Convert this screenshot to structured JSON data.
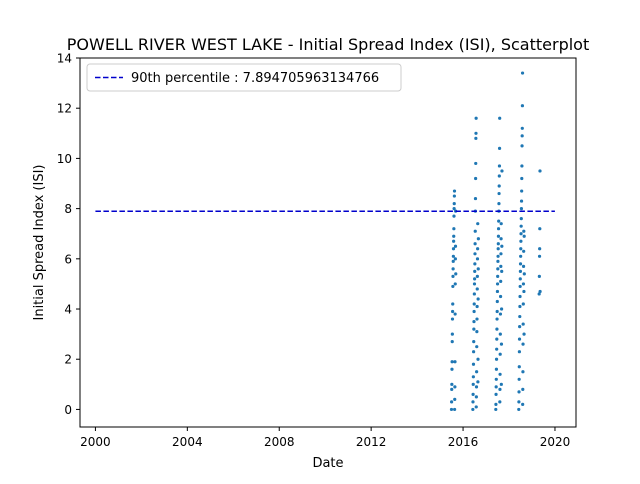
{
  "chart_data": {
    "type": "scatter",
    "title": "POWELL RIVER WEST LAKE - Initial Spread Index (ISI), Scatterplot",
    "xlabel": "Date",
    "ylabel": "Initial Spread Index (ISI)",
    "x_is_date": true,
    "xlim": [
      "1999-05-01",
      "2020-12-01"
    ],
    "ylim": [
      -0.7,
      14
    ],
    "x_ticks": [
      "2000",
      "2004",
      "2008",
      "2012",
      "2016",
      "2020"
    ],
    "y_ticks": [
      "0",
      "2",
      "4",
      "6",
      "8",
      "10",
      "12",
      "14"
    ],
    "grid": false,
    "legend_position": "upper left",
    "colors": {
      "points": "#1f77b4",
      "percentile_line": "#0000cc"
    },
    "reference_line": {
      "label": "90th percentile : 7.894705963134766",
      "y": 7.894705963134766,
      "x_start": "2000-01-01",
      "x_end": "2019-12-31",
      "style": "dashed"
    },
    "series": [
      {
        "points": [
          [
            "2015-07-01",
            0.0
          ],
          [
            "2015-07-03",
            0.3
          ],
          [
            "2015-07-05",
            0.8
          ],
          [
            "2015-07-07",
            1.0
          ],
          [
            "2015-07-09",
            1.6
          ],
          [
            "2015-07-11",
            1.9
          ],
          [
            "2015-07-13",
            2.7
          ],
          [
            "2015-07-15",
            3.0
          ],
          [
            "2015-07-17",
            3.6
          ],
          [
            "2015-07-19",
            3.9
          ],
          [
            "2015-07-21",
            4.2
          ],
          [
            "2015-07-23",
            4.9
          ],
          [
            "2015-07-25",
            5.3
          ],
          [
            "2015-07-27",
            5.6
          ],
          [
            "2015-07-29",
            5.9
          ],
          [
            "2015-07-31",
            6.1
          ],
          [
            "2015-08-02",
            6.4
          ],
          [
            "2015-08-04",
            6.7
          ],
          [
            "2015-08-06",
            6.9
          ],
          [
            "2015-08-08",
            7.2
          ],
          [
            "2015-08-10",
            7.7
          ],
          [
            "2015-08-12",
            8.0
          ],
          [
            "2015-08-14",
            8.2
          ],
          [
            "2015-08-16",
            8.5
          ],
          [
            "2015-08-18",
            8.7
          ],
          [
            "2015-08-20",
            0.0
          ],
          [
            "2015-08-22",
            0.4
          ],
          [
            "2015-08-24",
            0.9
          ],
          [
            "2015-08-26",
            1.9
          ],
          [
            "2015-08-28",
            3.8
          ],
          [
            "2015-08-30",
            5.0
          ],
          [
            "2015-09-01",
            6.0
          ],
          [
            "2015-09-03",
            6.5
          ],
          [
            "2015-09-05",
            7.9
          ],
          [
            "2015-09-07",
            5.4
          ],
          [
            "2016-06-05",
            0.0
          ],
          [
            "2016-06-07",
            0.3
          ],
          [
            "2016-06-09",
            0.6
          ],
          [
            "2016-06-11",
            1.0
          ],
          [
            "2016-06-13",
            1.3
          ],
          [
            "2016-06-15",
            1.8
          ],
          [
            "2016-06-17",
            2.3
          ],
          [
            "2016-06-19",
            2.7
          ],
          [
            "2016-06-21",
            3.2
          ],
          [
            "2016-06-23",
            3.5
          ],
          [
            "2016-06-25",
            3.9
          ],
          [
            "2016-06-27",
            4.2
          ],
          [
            "2016-06-29",
            4.6
          ],
          [
            "2016-07-01",
            5.0
          ],
          [
            "2016-07-03",
            5.2
          ],
          [
            "2016-07-05",
            5.5
          ],
          [
            "2016-07-07",
            5.8
          ],
          [
            "2016-07-09",
            6.2
          ],
          [
            "2016-07-11",
            6.6
          ],
          [
            "2016-07-13",
            7.1
          ],
          [
            "2016-07-15",
            7.9
          ],
          [
            "2016-07-17",
            8.4
          ],
          [
            "2016-07-19",
            9.2
          ],
          [
            "2016-07-21",
            9.8
          ],
          [
            "2016-07-23",
            10.8
          ],
          [
            "2016-07-25",
            11.0
          ],
          [
            "2016-07-27",
            11.6
          ],
          [
            "2016-07-29",
            0.1
          ],
          [
            "2016-07-31",
            0.5
          ],
          [
            "2016-08-02",
            0.9
          ],
          [
            "2016-08-04",
            1.5
          ],
          [
            "2016-08-06",
            2.5
          ],
          [
            "2016-08-08",
            3.1
          ],
          [
            "2016-08-10",
            3.6
          ],
          [
            "2016-08-12",
            4.1
          ],
          [
            "2016-08-14",
            4.8
          ],
          [
            "2016-08-16",
            5.3
          ],
          [
            "2016-08-18",
            6.0
          ],
          [
            "2016-08-20",
            6.4
          ],
          [
            "2016-08-22",
            7.4
          ],
          [
            "2016-08-24",
            1.1
          ],
          [
            "2016-08-26",
            2.0
          ],
          [
            "2016-08-28",
            4.4
          ],
          [
            "2016-08-30",
            5.6
          ],
          [
            "2016-09-01",
            6.8
          ],
          [
            "2017-06-05",
            0.0
          ],
          [
            "2017-06-07",
            0.2
          ],
          [
            "2017-06-09",
            0.6
          ],
          [
            "2017-06-11",
            0.9
          ],
          [
            "2017-06-13",
            1.2
          ],
          [
            "2017-06-15",
            1.6
          ],
          [
            "2017-06-17",
            2.0
          ],
          [
            "2017-06-19",
            2.4
          ],
          [
            "2017-06-21",
            2.8
          ],
          [
            "2017-06-23",
            3.2
          ],
          [
            "2017-06-25",
            3.6
          ],
          [
            "2017-06-27",
            3.9
          ],
          [
            "2017-06-29",
            4.3
          ],
          [
            "2017-07-01",
            4.7
          ],
          [
            "2017-07-03",
            5.0
          ],
          [
            "2017-07-05",
            5.3
          ],
          [
            "2017-07-07",
            5.6
          ],
          [
            "2017-07-09",
            5.9
          ],
          [
            "2017-07-11",
            6.1
          ],
          [
            "2017-07-13",
            6.4
          ],
          [
            "2017-07-15",
            6.6
          ],
          [
            "2017-07-17",
            6.9
          ],
          [
            "2017-07-19",
            7.2
          ],
          [
            "2017-07-21",
            7.5
          ],
          [
            "2017-07-23",
            7.9
          ],
          [
            "2017-07-25",
            8.2
          ],
          [
            "2017-07-27",
            8.6
          ],
          [
            "2017-07-29",
            8.9
          ],
          [
            "2017-07-31",
            9.3
          ],
          [
            "2017-08-02",
            9.7
          ],
          [
            "2017-08-04",
            10.4
          ],
          [
            "2017-08-06",
            11.6
          ],
          [
            "2017-08-08",
            0.3
          ],
          [
            "2017-08-10",
            0.8
          ],
          [
            "2017-08-12",
            1.4
          ],
          [
            "2017-08-14",
            2.2
          ],
          [
            "2017-08-16",
            3.0
          ],
          [
            "2017-08-18",
            3.8
          ],
          [
            "2017-08-20",
            4.5
          ],
          [
            "2017-08-22",
            5.1
          ],
          [
            "2017-08-24",
            5.7
          ],
          [
            "2017-08-26",
            6.2
          ],
          [
            "2017-08-28",
            6.8
          ],
          [
            "2017-08-30",
            7.4
          ],
          [
            "2017-09-01",
            1.0
          ],
          [
            "2017-09-03",
            2.6
          ],
          [
            "2017-09-05",
            4.0
          ],
          [
            "2017-09-07",
            5.5
          ],
          [
            "2017-09-09",
            6.5
          ],
          [
            "2017-09-11",
            9.5
          ],
          [
            "2018-06-05",
            0.0
          ],
          [
            "2018-06-07",
            0.3
          ],
          [
            "2018-06-09",
            0.7
          ],
          [
            "2018-06-11",
            1.2
          ],
          [
            "2018-06-13",
            1.7
          ],
          [
            "2018-06-15",
            2.3
          ],
          [
            "2018-06-17",
            2.8
          ],
          [
            "2018-06-19",
            3.3
          ],
          [
            "2018-06-21",
            3.7
          ],
          [
            "2018-06-23",
            4.1
          ],
          [
            "2018-06-25",
            4.5
          ],
          [
            "2018-06-27",
            4.9
          ],
          [
            "2018-06-29",
            5.2
          ],
          [
            "2018-07-01",
            5.5
          ],
          [
            "2018-07-03",
            5.8
          ],
          [
            "2018-07-05",
            6.1
          ],
          [
            "2018-07-07",
            6.4
          ],
          [
            "2018-07-09",
            6.7
          ],
          [
            "2018-07-11",
            7.0
          ],
          [
            "2018-07-13",
            7.3
          ],
          [
            "2018-07-15",
            7.6
          ],
          [
            "2018-07-17",
            8.0
          ],
          [
            "2018-07-19",
            8.3
          ],
          [
            "2018-07-21",
            8.7
          ],
          [
            "2018-07-23",
            9.2
          ],
          [
            "2018-07-25",
            9.7
          ],
          [
            "2018-07-27",
            10.5
          ],
          [
            "2018-07-29",
            10.9
          ],
          [
            "2018-07-31",
            11.2
          ],
          [
            "2018-08-02",
            12.1
          ],
          [
            "2018-08-04",
            13.4
          ],
          [
            "2018-08-06",
            0.2
          ],
          [
            "2018-08-08",
            0.8
          ],
          [
            "2018-08-10",
            1.5
          ],
          [
            "2018-08-12",
            2.6
          ],
          [
            "2018-08-14",
            3.4
          ],
          [
            "2018-08-16",
            4.2
          ],
          [
            "2018-08-18",
            5.0
          ],
          [
            "2018-08-20",
            5.7
          ],
          [
            "2018-08-22",
            6.3
          ],
          [
            "2018-08-24",
            7.1
          ],
          [
            "2018-08-26",
            4.7
          ],
          [
            "2018-08-28",
            3.0
          ],
          [
            "2018-08-30",
            6.9
          ],
          [
            "2018-09-01",
            5.4
          ],
          [
            "2019-04-25",
            4.6
          ],
          [
            "2019-04-28",
            5.3
          ],
          [
            "2019-05-01",
            6.1
          ],
          [
            "2019-05-03",
            6.4
          ],
          [
            "2019-05-05",
            7.2
          ],
          [
            "2019-05-08",
            9.5
          ],
          [
            "2019-05-10",
            4.7
          ]
        ]
      }
    ]
  }
}
